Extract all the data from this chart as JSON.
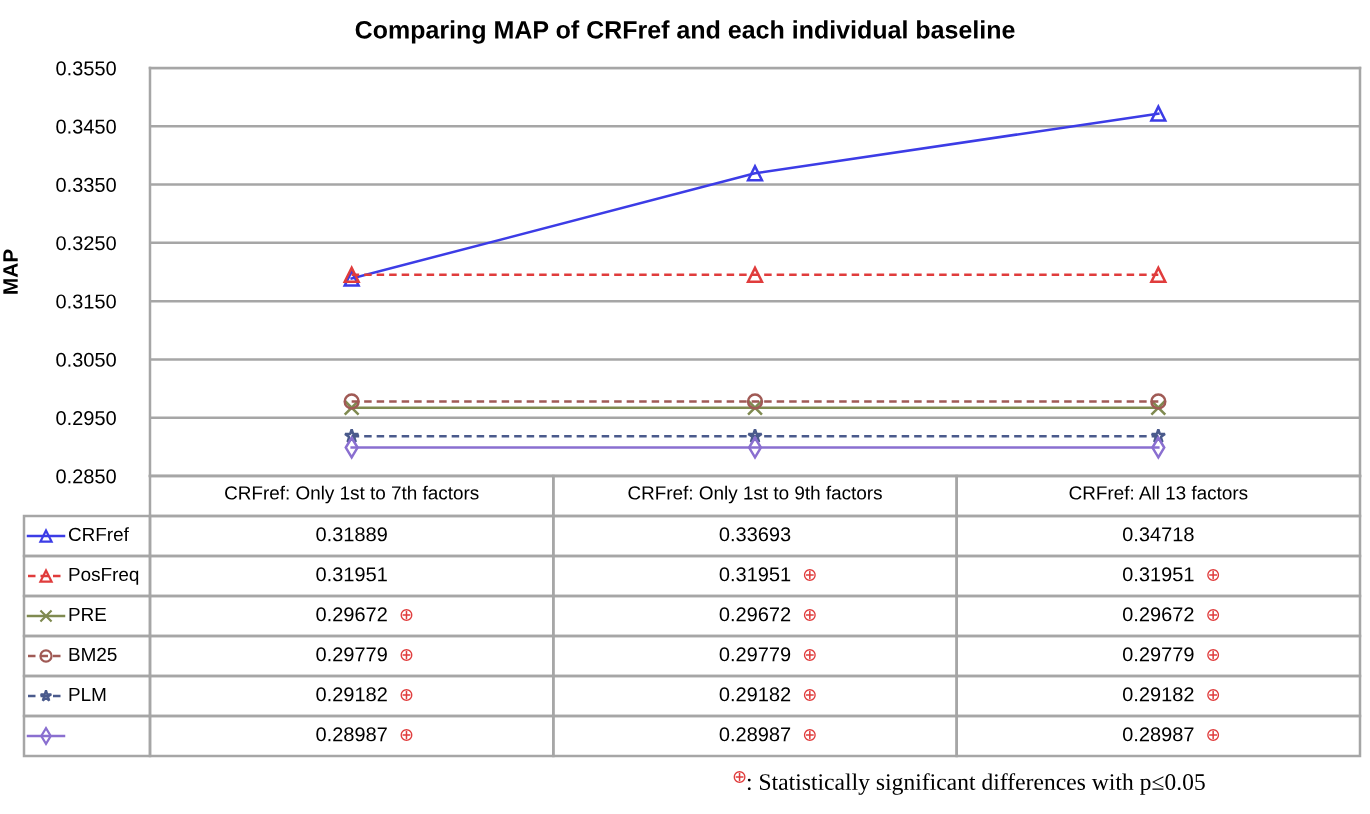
{
  "chart_data": {
    "type": "line",
    "title": "Comparing MAP of CRFref and each individual baseline",
    "ylabel": "MAP",
    "categories": [
      "CRFref: Only 1st to 7th factors",
      "CRFref: Only 1st to 9th factors",
      "CRFref: All 13 factors"
    ],
    "ylim": [
      0.285,
      0.355
    ],
    "yticks": [
      {
        "value": 0.285,
        "label": "0.2850"
      },
      {
        "value": 0.295,
        "label": "0.2950"
      },
      {
        "value": 0.305,
        "label": "0.3050"
      },
      {
        "value": 0.315,
        "label": "0.3150"
      },
      {
        "value": 0.325,
        "label": "0.3250"
      },
      {
        "value": 0.335,
        "label": "0.3350"
      },
      {
        "value": 0.345,
        "label": "0.3450"
      },
      {
        "value": 0.355,
        "label": "0.3550"
      }
    ],
    "grid": "y",
    "legend": "bottom",
    "series": [
      {
        "name": "CRFref",
        "color": "#3c3ce6",
        "marker": "triangle",
        "line_style": "solid",
        "values": [
          0.31889,
          0.33693,
          0.34718
        ],
        "value_labels": [
          "0.31889",
          "0.33693",
          "0.34718"
        ]
      },
      {
        "name": "PosFreq",
        "color": "#e03c3c",
        "marker": "triangle",
        "line_style": "dashed",
        "values": [
          0.31951,
          0.31951,
          0.31951
        ],
        "value_labels": [
          "0.31951",
          "0.31951 ⊕",
          "0.31951 ⊕"
        ]
      },
      {
        "name": "PRE",
        "color": "#7f8a50",
        "marker": "cross",
        "line_style": "solid",
        "values": [
          0.29672,
          0.29672,
          0.29672
        ],
        "value_labels": [
          "0.29672 ⊕",
          "0.29672 ⊕",
          "0.29672 ⊕"
        ]
      },
      {
        "name": "BM25",
        "color": "#a05a55",
        "marker": "circle",
        "line_style": "dashed",
        "values": [
          0.29779,
          0.29779,
          0.29779
        ],
        "value_labels": [
          "0.29779 ⊕",
          "0.29779 ⊕",
          "0.29779 ⊕"
        ]
      },
      {
        "name": "PLM",
        "color": "#4a5a8c",
        "marker": "star",
        "line_style": "dashed",
        "values": [
          0.29182,
          0.29182,
          0.29182
        ],
        "value_labels": [
          "0.29182 ⊕",
          "0.29182 ⊕",
          "0.29182 ⊕"
        ]
      },
      {
        "color": "#8a6fd0",
        "marker": "diamond",
        "line_style": "solid",
        "values": [
          0.28987,
          0.28987,
          0.28987
        ],
        "value_labels": [
          "0.28987 ⊕",
          "0.28987 ⊕",
          "0.28987 ⊕"
        ]
      }
    ],
    "annotations": [
      "⊕: Statistically significant differences with p≤0.05"
    ]
  }
}
